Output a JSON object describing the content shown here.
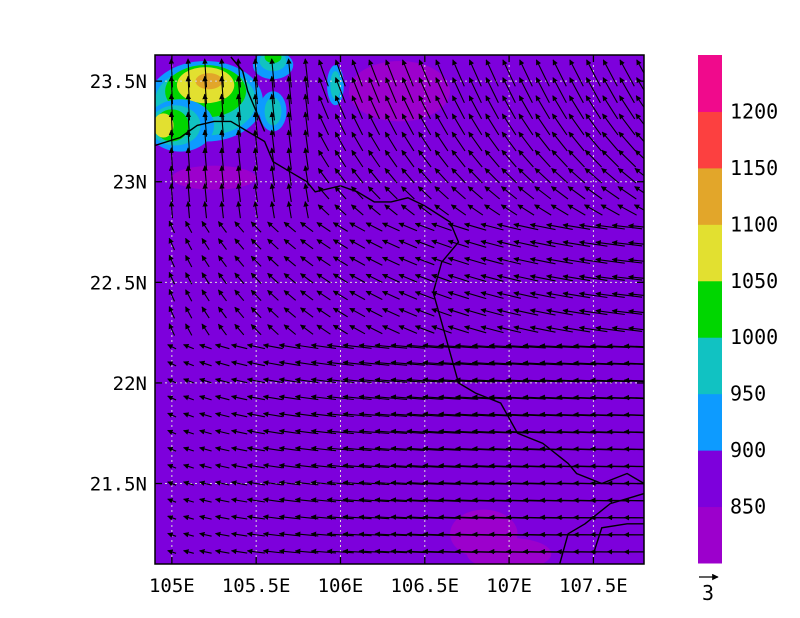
{
  "chart_data": {
    "type": "heatmap",
    "overlay": "wind-vectors",
    "grid": true,
    "xlim": [
      104.9,
      107.8
    ],
    "ylim": [
      21.1,
      23.63
    ],
    "x_ticks": [
      105,
      105.5,
      106,
      106.5,
      107,
      107.5
    ],
    "x_tick_labels": [
      "105E",
      "105.5E",
      "106E",
      "106.5E",
      "107E",
      "107.5E"
    ],
    "y_ticks": [
      21.5,
      22,
      22.5,
      23,
      23.5
    ],
    "y_tick_labels": [
      "21.5N",
      "22N",
      "22.5N",
      "23N",
      "23.5N"
    ],
    "colorbar": {
      "placement": "right",
      "levels": [
        850,
        900,
        950,
        1000,
        1050,
        1100,
        1150,
        1200
      ],
      "level_labels": [
        "850",
        "900",
        "950",
        "1000",
        "1050",
        "1100",
        "1150",
        "1200"
      ],
      "colors": [
        "#9c00cc",
        "#7d00dc",
        "#0d9bff",
        "#11c2c2",
        "#00d600",
        "#e2e030",
        "#e2a62a",
        "#fc4040",
        "#f00a8c"
      ]
    },
    "background_fill": "#7d00dc",
    "vector_reference": {
      "label": "3"
    },
    "fill_regions": [
      {
        "level": "below-850",
        "center": [
          106.35,
          23.45
        ],
        "radius": [
          0.3,
          0.15
        ]
      },
      {
        "level": "below-850",
        "center": [
          106.85,
          21.25
        ],
        "radius": [
          0.2,
          0.12
        ]
      },
      {
        "level": "below-850",
        "center": [
          107.0,
          21.15
        ],
        "radius": [
          0.25,
          0.08
        ]
      },
      {
        "level": "below-850",
        "center": [
          105.25,
          23.02
        ],
        "radius": [
          0.25,
          0.06
        ]
      },
      {
        "level": "900-950",
        "center": [
          105.2,
          23.4
        ],
        "radius": [
          0.34,
          0.2
        ]
      },
      {
        "level": "950-1000",
        "center": [
          105.2,
          23.4
        ],
        "radius": [
          0.3,
          0.17
        ]
      },
      {
        "level": "1000-1050",
        "center": [
          105.2,
          23.45
        ],
        "radius": [
          0.24,
          0.13
        ]
      },
      {
        "level": "1050-1100",
        "center": [
          105.2,
          23.48
        ],
        "radius": [
          0.17,
          0.09
        ]
      },
      {
        "level": "1100-1150",
        "center": [
          105.22,
          23.5
        ],
        "radius": [
          0.08,
          0.04
        ]
      },
      {
        "level": "900-950",
        "center": [
          105.05,
          23.28
        ],
        "radius": [
          0.2,
          0.13
        ]
      },
      {
        "level": "950-1000",
        "center": [
          105.02,
          23.28
        ],
        "radius": [
          0.15,
          0.1
        ]
      },
      {
        "level": "1000-1050",
        "center": [
          105.0,
          23.28
        ],
        "radius": [
          0.1,
          0.08
        ]
      },
      {
        "level": "1050-1100",
        "center": [
          104.95,
          23.28
        ],
        "radius": [
          0.06,
          0.06
        ]
      },
      {
        "level": "900-950",
        "center": [
          105.6,
          23.58
        ],
        "radius": [
          0.12,
          0.07
        ]
      },
      {
        "level": "950-1000",
        "center": [
          105.6,
          23.6
        ],
        "radius": [
          0.08,
          0.05
        ]
      },
      {
        "level": "1000-1050",
        "center": [
          105.6,
          23.62
        ],
        "radius": [
          0.05,
          0.03
        ]
      },
      {
        "level": "900-950",
        "center": [
          105.6,
          23.35
        ],
        "radius": [
          0.08,
          0.1
        ]
      },
      {
        "level": "950-1000",
        "center": [
          105.6,
          23.35
        ],
        "radius": [
          0.05,
          0.07
        ]
      },
      {
        "level": "900-950",
        "center": [
          105.97,
          23.48
        ],
        "radius": [
          0.05,
          0.1
        ]
      },
      {
        "level": "950-1000",
        "center": [
          105.97,
          23.48
        ],
        "radius": [
          0.03,
          0.07
        ]
      }
    ],
    "boundary_lines": [
      [
        [
          104.9,
          23.18
        ],
        [
          105.05,
          23.22
        ],
        [
          105.15,
          23.28
        ],
        [
          105.25,
          23.3
        ],
        [
          105.35,
          23.3
        ],
        [
          105.45,
          23.25
        ],
        [
          105.55,
          23.2
        ],
        [
          105.6,
          23.1
        ],
        [
          105.7,
          23.05
        ],
        [
          105.8,
          23.0
        ],
        [
          105.85,
          22.95
        ],
        [
          106.0,
          22.98
        ],
        [
          106.1,
          22.95
        ],
        [
          106.2,
          22.9
        ],
        [
          106.3,
          22.9
        ],
        [
          106.4,
          22.92
        ],
        [
          106.5,
          22.88
        ],
        [
          106.65,
          22.8
        ],
        [
          106.7,
          22.7
        ],
        [
          106.6,
          22.6
        ],
        [
          106.55,
          22.45
        ],
        [
          106.6,
          22.3
        ],
        [
          106.65,
          22.15
        ],
        [
          106.7,
          22.0
        ],
        [
          106.8,
          21.95
        ],
        [
          106.95,
          21.9
        ],
        [
          107.05,
          21.75
        ],
        [
          107.2,
          21.7
        ],
        [
          107.35,
          21.6
        ],
        [
          107.4,
          21.55
        ],
        [
          107.55,
          21.5
        ],
        [
          107.7,
          21.55
        ],
        [
          107.8,
          21.5
        ]
      ],
      [
        [
          105.35,
          23.62
        ],
        [
          105.42,
          23.55
        ],
        [
          105.45,
          23.45
        ],
        [
          105.5,
          23.35
        ],
        [
          105.55,
          23.25
        ]
      ],
      [
        [
          107.3,
          21.1
        ],
        [
          107.35,
          21.25
        ],
        [
          107.45,
          21.3
        ],
        [
          107.6,
          21.4
        ],
        [
          107.8,
          21.45
        ]
      ],
      [
        [
          107.5,
          21.15
        ],
        [
          107.55,
          21.28
        ],
        [
          107.7,
          21.3
        ],
        [
          107.8,
          21.3
        ]
      ]
    ]
  }
}
